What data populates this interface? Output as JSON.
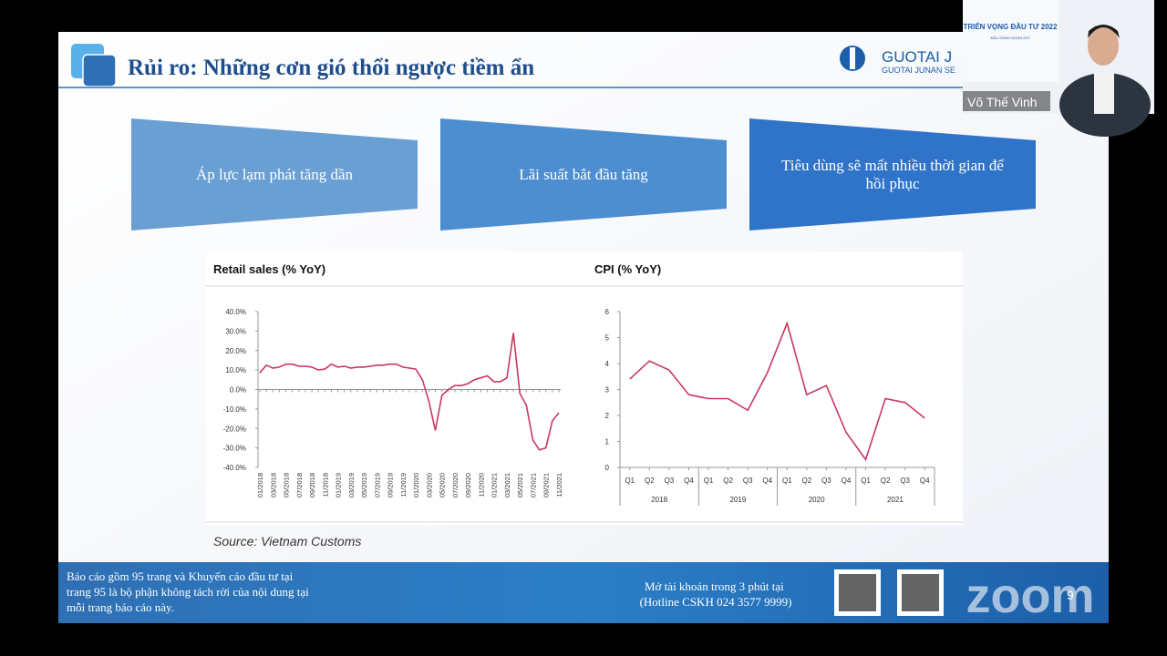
{
  "video_tile": {
    "banner_title": "TRIỂN VỌNG ĐẦU TƯ 2022",
    "banner_subtitle": "ĐẦU SÓNG NGỌN GIÓ",
    "participant_name": "Võ Thế Vinh"
  },
  "slide": {
    "title": "Rủi ro: Những cơn gió thổi ngược tiềm ẩn",
    "logo": "GUOTAI J",
    "logo_sub": "GUOTAI JUNAN SE",
    "boxes": [
      {
        "lines": [
          "Áp lực lạm phát tăng dần"
        ]
      },
      {
        "lines": [
          "Lãi suất bắt đầu tăng"
        ]
      },
      {
        "lines": [
          "Tiêu dùng sẽ mất nhiều thời gian để",
          "hồi phục"
        ]
      }
    ],
    "source": "Source: Vietnam Customs",
    "footer_left": [
      "Báo cáo gồm 95 trang và Khuyến cáo đầu tư tại",
      "trang 95 là bộ phận không tách rời của nội dung tại",
      "mỗi trang báo cáo này."
    ],
    "footer_right": [
      "Mở tài khoản trong 3 phút tại",
      "(Hotline CSKH 024 3577 9999)"
    ],
    "page_number": "9",
    "zoom_watermark": "zoom"
  },
  "chart_data": [
    {
      "type": "line",
      "title": "Retail sales (% YoY)",
      "color": "#c8385f",
      "categories": [
        "01/2018",
        null,
        "03/2018",
        null,
        "05/2018",
        null,
        "07/2018",
        null,
        "09/2018",
        null,
        "11/2018",
        null,
        "01/2019",
        null,
        "03/2019",
        null,
        "05/2019",
        null,
        "07/2019",
        null,
        "09/2019",
        null,
        "11/2019",
        null,
        "01/2020",
        null,
        "03/2020",
        null,
        "05/2020",
        null,
        "07/2020",
        null,
        "09/2020",
        null,
        "11/2020",
        null,
        "01/2021",
        null,
        "03/2021",
        null,
        "05/2021",
        null,
        "07/2021",
        null,
        "09/2021",
        null,
        "11/2021"
      ],
      "values": [
        8.5,
        12.5,
        11,
        11.5,
        13,
        13,
        12,
        12,
        11.5,
        10,
        10.5,
        13,
        11.5,
        12,
        11,
        11.5,
        11.5,
        12,
        12.5,
        12.5,
        13,
        13,
        11.5,
        11,
        10.5,
        5,
        -6,
        -21,
        -3,
        0,
        2,
        2,
        3,
        5,
        6,
        7,
        4,
        4,
        6,
        29,
        -2,
        -8,
        -26,
        -31,
        -30,
        -16,
        -12
      ],
      "ylim": [
        -40,
        40
      ],
      "yticks": [
        {
          "value": 40,
          "label": "40.0%"
        },
        {
          "value": 30,
          "label": "30.0%"
        },
        {
          "value": 20,
          "label": "20.0%"
        },
        {
          "value": 10,
          "label": "10.0%"
        },
        {
          "value": 0,
          "label": "0.0%"
        },
        {
          "value": -10,
          "label": "-10.0%"
        },
        {
          "value": -20,
          "label": "-20.0%"
        },
        {
          "value": -30,
          "label": "-30.0%"
        },
        {
          "value": -40,
          "label": "-40.0%"
        }
      ],
      "grid": false
    },
    {
      "type": "line",
      "title": "CPI (% YoY)",
      "color": "#c8385f",
      "categories": [
        "Q1",
        "Q2",
        "Q3",
        "Q4",
        "Q1",
        "Q2",
        "Q3",
        "Q4",
        "Q1",
        "Q2",
        "Q3",
        "Q4",
        "Q1",
        "Q2",
        "Q3",
        "Q4"
      ],
      "groups": [
        "2018",
        "2019",
        "2020",
        "2021"
      ],
      "values": [
        3.4,
        4.1,
        3.75,
        2.8,
        2.65,
        2.65,
        2.2,
        3.65,
        5.55,
        2.8,
        3.15,
        1.35,
        0.3,
        2.65,
        2.5,
        1.9
      ],
      "ylim": [
        0,
        6
      ],
      "yticks": [
        0,
        1,
        2,
        3,
        4,
        5,
        6
      ],
      "grid": false
    }
  ]
}
